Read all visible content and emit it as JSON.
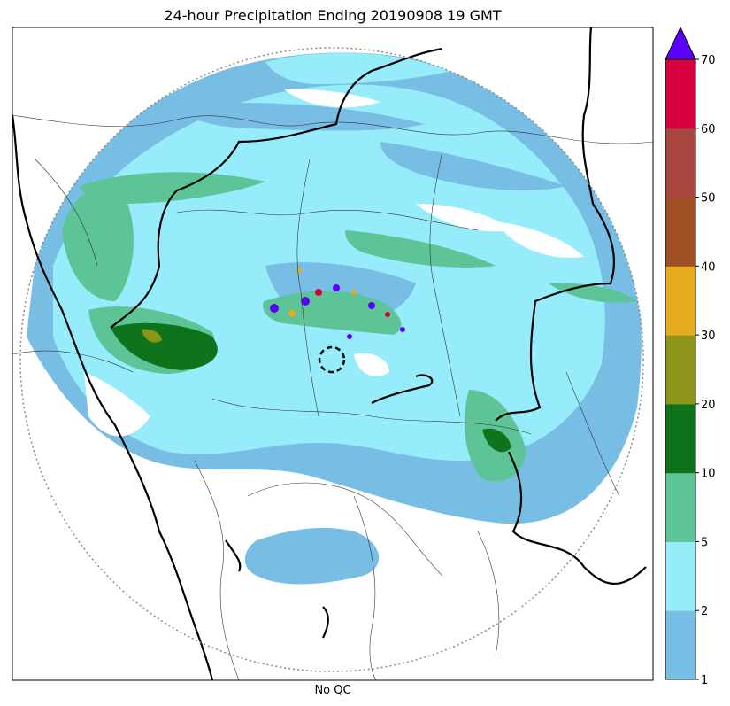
{
  "chart_data": {
    "type": "heatmap",
    "title": "24-hour Precipitation Ending 20190908 19 GMT",
    "xlabel": "No QC",
    "colorbar": {
      "levels": [
        1,
        2,
        5,
        10,
        20,
        30,
        40,
        50,
        60,
        70
      ],
      "tick_labels": [
        "1",
        "2",
        "5",
        "10",
        "20",
        "30",
        "40",
        "50",
        "60",
        "70"
      ],
      "colors": [
        "#78bde3",
        "#96ecfb",
        "#5cc496",
        "#0e731a",
        "#8c9419",
        "#e6aa1e",
        "#9e4f24",
        "#a7473f",
        "#d6003f"
      ],
      "extend_color": "#5a00ff",
      "extend": "max"
    },
    "grid": false,
    "radar_range_ring": true
  }
}
